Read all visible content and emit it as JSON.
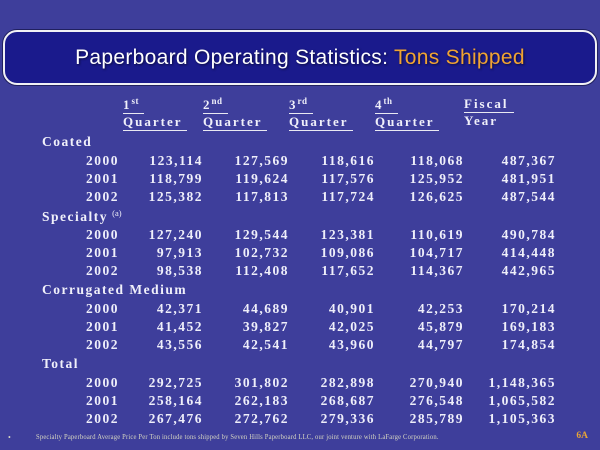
{
  "slide": {
    "title": {
      "prefix": "Paperboard Operating Statistics: ",
      "highlight": "Tons Shipped"
    },
    "page_number": "6A",
    "footnote_bullet": "•",
    "footnote": "Specialty Paperboard Average Price Per Ton include tons shipped by Seven Hills Paperboard LLC, our joint venture with LaFarge Corporation."
  },
  "colors": {
    "slide_background": "#3E3E9B",
    "title_box_background": "#1A1A8C",
    "title_box_border": "#F0F0F5",
    "accent_orange": "#F0A332",
    "table_text": "#EFEFFA",
    "footnote_text": "#D5D5C2",
    "page_number_text": "#E8A435"
  },
  "table": {
    "columns": [
      {
        "ordinal": "1",
        "sup": "st",
        "label": "Quarter",
        "underline_label": true
      },
      {
        "ordinal": "2",
        "sup": "nd",
        "label": "Quarter",
        "underline_label": true
      },
      {
        "ordinal": "3",
        "sup": "rd",
        "label": "Quarter",
        "underline_label": true
      },
      {
        "ordinal": "4",
        "sup": "th",
        "label": "Quarter",
        "underline_label": true
      },
      {
        "ordinal": "Fiscal",
        "sup": "",
        "label": "Year",
        "underline_label": false
      }
    ],
    "groups": [
      {
        "label": "Coated",
        "sup": "",
        "rows": [
          {
            "year": "2000",
            "values": [
              "123,114",
              "127,569",
              "118,616",
              "118,068",
              "487,367"
            ]
          },
          {
            "year": "2001",
            "values": [
              "118,799",
              "119,624",
              "117,576",
              "125,952",
              "481,951"
            ]
          },
          {
            "year": "2002",
            "values": [
              "125,382",
              "117,813",
              "117,724",
              "126,625",
              "487,544"
            ]
          }
        ]
      },
      {
        "label": "Specialty",
        "sup": "(a)",
        "rows": [
          {
            "year": "2000",
            "values": [
              "127,240",
              "129,544",
              "123,381",
              "110,619",
              "490,784"
            ]
          },
          {
            "year": "2001",
            "values": [
              "97,913",
              "102,732",
              "109,086",
              "104,717",
              "414,448"
            ]
          },
          {
            "year": "2002",
            "values": [
              "98,538",
              "112,408",
              "117,652",
              "114,367",
              "442,965"
            ]
          }
        ]
      },
      {
        "label": "Corrugated Medium",
        "sup": "",
        "rows": [
          {
            "year": "2000",
            "values": [
              "42,371",
              "44,689",
              "40,901",
              "42,253",
              "170,214"
            ]
          },
          {
            "year": "2001",
            "values": [
              "41,452",
              "39,827",
              "42,025",
              "45,879",
              "169,183"
            ]
          },
          {
            "year": "2002",
            "values": [
              "43,556",
              "42,541",
              "43,960",
              "44,797",
              "174,854"
            ]
          }
        ]
      },
      {
        "label": "Total",
        "sup": "",
        "rows": [
          {
            "year": "2000",
            "values": [
              "292,725",
              "301,802",
              "282,898",
              "270,940",
              "1,148,365"
            ]
          },
          {
            "year": "2001",
            "values": [
              "258,164",
              "262,183",
              "268,687",
              "276,548",
              "1,065,582"
            ]
          },
          {
            "year": "2002",
            "values": [
              "267,476",
              "272,762",
              "279,336",
              "285,789",
              "1,105,363"
            ]
          }
        ]
      }
    ]
  }
}
